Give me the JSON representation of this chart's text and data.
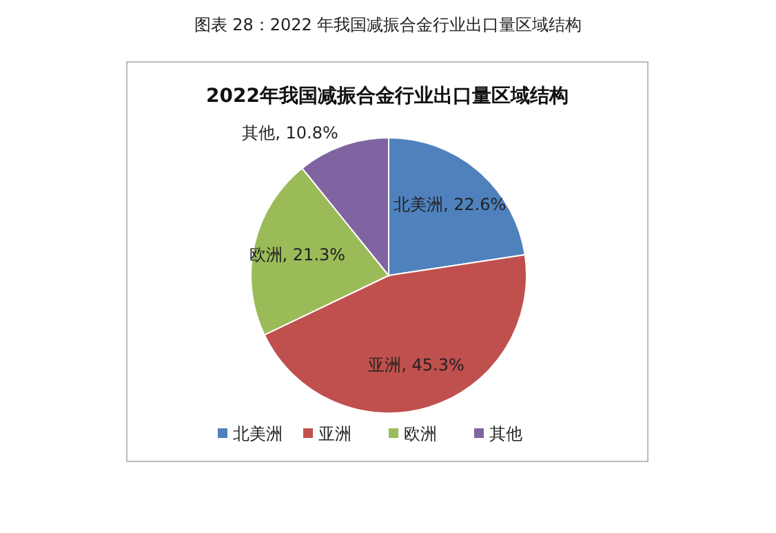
{
  "chart_data": {
    "type": "pie",
    "title": "图表 28：2022 年我国减振合金行业出口量区域结构",
    "subtitle": "2022年我国减振合金行业出口量区域结构",
    "categories": [
      "北美洲",
      "亚洲",
      "欧洲",
      "其他"
    ],
    "values": [
      22.6,
      45.3,
      21.3,
      10.8
    ],
    "value_labels": [
      "北美洲, 22.6%",
      "亚洲, 45.3%",
      "欧洲, 21.3%",
      "其他, 10.8%"
    ],
    "colors": [
      "#4f81bd",
      "#c0504d",
      "#9bbb59",
      "#8064a2"
    ],
    "legend": "bottom"
  }
}
